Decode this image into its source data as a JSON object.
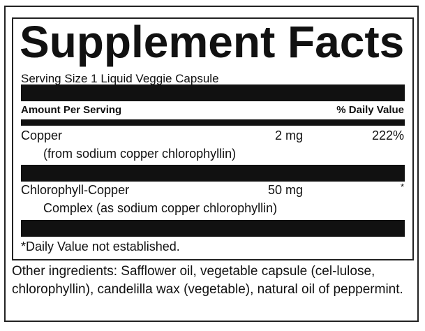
{
  "label": {
    "title": "Supplement Facts",
    "serving_size": "Serving Size 1 Liquid Veggie Capsule",
    "header": {
      "amount": "Amount Per Serving",
      "daily_value": "% Daily Value"
    },
    "nutrients": [
      {
        "name": "Copper",
        "detail": "(from sodium copper chlorophyllin)",
        "amount": "2 mg",
        "dv": "222%"
      },
      {
        "name": "Chlorophyll-Copper",
        "detail": "Complex (as sodium copper chlorophyllin)",
        "amount": "50 mg",
        "dv": "*"
      }
    ],
    "footnote": "*Daily Value not established.",
    "other_ingredients": "Other ingredients: Safflower oil, vegetable capsule (cel-lulose, chlorophyllin), candelilla wax (vegetable), natural oil of peppermint."
  }
}
